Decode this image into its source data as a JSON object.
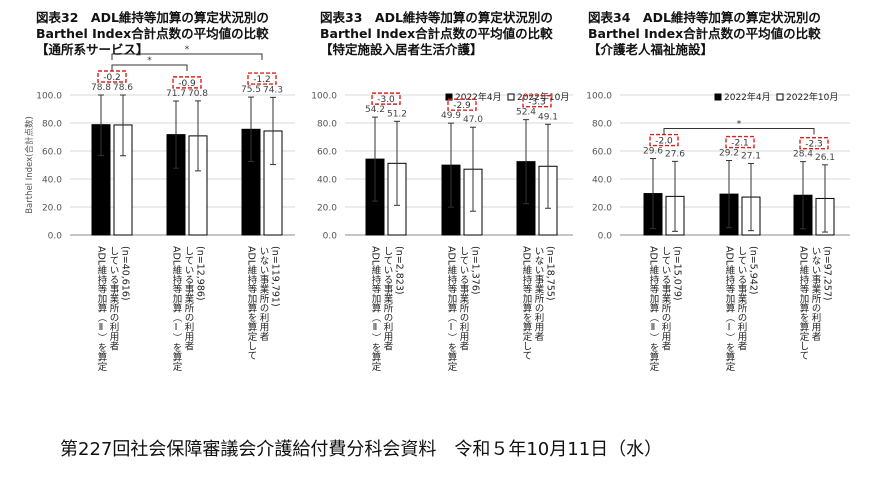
{
  "footer": "第227回社会保障審議会介護給付費分科会資料　令和５年10月11日（水）",
  "legend": {
    "april": "2022年4月",
    "october": "2022年10月"
  },
  "colors": {
    "april": "#000000",
    "october": "#ffffff",
    "diff_box": "#e0201c",
    "grid": "#d9d9d9",
    "axis_text": "#555555"
  },
  "panels": [
    {
      "title_lines": [
        "図表32　ADL維持等加算の算定状況別の",
        "Barthel Index合計点数の平均値の比較",
        "【通所系サービス】"
      ],
      "show_legend": false,
      "ylabel": "Barthel Index(合計点数)"
    },
    {
      "title_lines": [
        "図表33　ADL維持等加算の算定状況別の",
        "Barthel Index合計点数の平均値の比較",
        "【特定施設入居者生活介護】"
      ],
      "show_legend": true,
      "ylabel": ""
    },
    {
      "title_lines": [
        "図表34　ADL維持等加算の算定状況別の",
        "Barthel Index合計点数の平均値の比較",
        "【介護老人福祉施設】"
      ],
      "show_legend": true,
      "ylabel": ""
    }
  ],
  "chart_data": [
    {
      "type": "bar",
      "title": "図表32　ADL維持等加算の算定状況別の Barthel Index合計点数の平均値の比較 【通所系サービス】",
      "ylabel": "Barthel Index(合計点数)",
      "ylim": [
        0,
        100
      ],
      "yticks": [
        "0.0",
        "20.0",
        "40.0",
        "60.0",
        "80.0",
        "100.0"
      ],
      "grid": true,
      "categories": [
        [
          "ADL維持等加算（Ⅱ）を算定",
          "している事業所の利用者",
          "(n=40,616)"
        ],
        [
          "ADL維持等加算（Ⅰ）を算定",
          "している事業所の利用者",
          "(n=12,986)"
        ],
        [
          "ADL維持等加算を算定して",
          "いない事業所の利用者",
          "(n=119,791)"
        ]
      ],
      "series": [
        {
          "name": "",
          "values": [
            78.8,
            71.7,
            75.5
          ],
          "labels": [
            "78.8",
            "71.7",
            "75.5"
          ],
          "error": [
            22,
            24,
            23
          ]
        },
        {
          "name": "",
          "values": [
            78.6,
            70.8,
            74.3
          ],
          "labels": [
            "78.6",
            "70.8",
            "74.3"
          ],
          "error": [
            22,
            25,
            24
          ]
        }
      ],
      "differences": [
        "-0.2",
        "-0.9",
        "-1.2"
      ],
      "significance": [
        {
          "from": 0,
          "to": 1,
          "label": "*"
        },
        {
          "from": 0,
          "to": 2,
          "label": "*"
        }
      ]
    },
    {
      "type": "bar",
      "title": "図表33　ADL維持等加算の算定状況別の Barthel Index合計点数の平均値の比較 【特定施設入居者生活介護】",
      "ylim": [
        0,
        100
      ],
      "yticks": [
        "0.0",
        "20.0",
        "40.0",
        "60.0",
        "80.0",
        "100.0"
      ],
      "grid": true,
      "legend": "top",
      "categories": [
        [
          "ADL維持等加算（Ⅱ）を算定",
          "している事業所の利用者",
          "(n=2,823)"
        ],
        [
          "ADL維持等加算（Ⅰ）を算定",
          "している事業所の利用者",
          "(n=1,376)"
        ],
        [
          "ADL維持等加算を算定して",
          "いない事業所の利用者",
          "(n=18,755)"
        ]
      ],
      "series": [
        {
          "name": "2022年4月",
          "values": [
            54.2,
            49.9,
            52.4
          ],
          "labels": [
            "54.2",
            "49.9",
            "52.4"
          ],
          "error": [
            30,
            30,
            30
          ]
        },
        {
          "name": "2022年10月",
          "values": [
            51.2,
            47.0,
            49.1
          ],
          "labels": [
            "51.2",
            "47.0",
            "49.1"
          ],
          "error": [
            30,
            30,
            30
          ]
        }
      ],
      "differences": [
        "-3.0",
        "-2.9",
        "-3.3"
      ],
      "significance": []
    },
    {
      "type": "bar",
      "title": "図表34　ADL維持等加算の算定状況別の Barthel Index合計点数の平均値の比較 【介護老人福祉施設】",
      "ylim": [
        0,
        100
      ],
      "yticks": [
        "0.0",
        "20.0",
        "40.0",
        "60.0",
        "80.0",
        "100.0"
      ],
      "grid": true,
      "legend": "top",
      "categories": [
        [
          "ADL維持等加算（Ⅱ）を算定",
          "している事業所の利用者",
          "(n=15,079)"
        ],
        [
          "ADL維持等加算（Ⅰ）を算定",
          "している事業所の利用者",
          "(n=5,942)"
        ],
        [
          "ADL維持等加算を算定して",
          "いない事業所の利用者",
          "(n=97,257)"
        ]
      ],
      "series": [
        {
          "name": "2022年4月",
          "values": [
            29.6,
            29.2,
            28.4
          ],
          "labels": [
            "29.6",
            "29.2",
            "28.4"
          ],
          "error": [
            25,
            24,
            24
          ]
        },
        {
          "name": "2022年10月",
          "values": [
            27.6,
            27.1,
            26.1
          ],
          "labels": [
            "27.6",
            "27.1",
            "26.1"
          ],
          "error": [
            25,
            24,
            24
          ]
        }
      ],
      "differences": [
        "-2.0",
        "-2.1",
        "-2.3"
      ],
      "significance": [
        {
          "from": 0,
          "to": 2,
          "label": "*"
        }
      ]
    }
  ]
}
